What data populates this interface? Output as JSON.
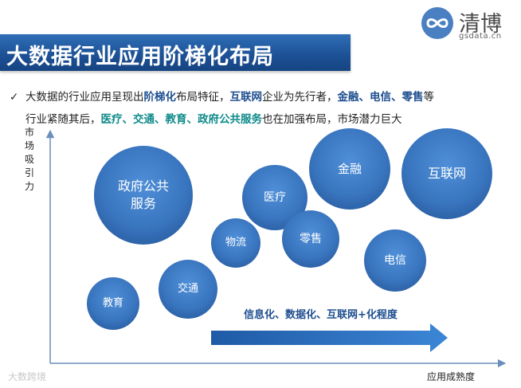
{
  "title": "大数据行业应用阶梯化布局",
  "logo": {
    "name": "清博",
    "domain": "gsdata.cn",
    "icon": "infinity-link-icon",
    "color": "#4a7fc1"
  },
  "description": {
    "check_icon": "✓",
    "segments_line1": [
      {
        "text": "大数据的行业应用呈现出",
        "style": "plain"
      },
      {
        "text": "阶梯化",
        "style": "blue"
      },
      {
        "text": "布局特征，",
        "style": "plain"
      },
      {
        "text": "互联网",
        "style": "blue"
      },
      {
        "text": "企业为先行者，",
        "style": "plain"
      },
      {
        "text": "金融、电信、零售",
        "style": "blue"
      },
      {
        "text": "等",
        "style": "plain"
      }
    ],
    "segments_line2": [
      {
        "text": "行业紧随其后，",
        "style": "plain"
      },
      {
        "text": "医疗、交通、教育、政府公共服务",
        "style": "teal"
      },
      {
        "text": "也在加强布局，市场潜力巨大",
        "style": "plain"
      }
    ]
  },
  "axes": {
    "y_label": "市场吸引力",
    "x_label": "应用成熟度"
  },
  "bubbles": [
    {
      "id": "education",
      "label": "教育"
    },
    {
      "id": "transport",
      "label": "交通"
    },
    {
      "id": "government",
      "label": "政府公共服务",
      "label_lines": [
        "政府公共",
        "服务"
      ]
    },
    {
      "id": "logistics",
      "label": "物流"
    },
    {
      "id": "medical",
      "label": "医疗"
    },
    {
      "id": "retail",
      "label": "零售"
    },
    {
      "id": "finance",
      "label": "金融"
    },
    {
      "id": "internet",
      "label": "互联网"
    },
    {
      "id": "telecom",
      "label": "电信"
    }
  ],
  "arrow": {
    "label": "信息化、数据化、互联网+化程度"
  },
  "watermark": "大数跨境",
  "colors": {
    "title_bar": "#1c4f94",
    "bubble": "#3a76c0",
    "arrow": "#2f6fc0",
    "highlight_blue": "#1e4e8f",
    "highlight_teal": "#0e8a8a"
  }
}
